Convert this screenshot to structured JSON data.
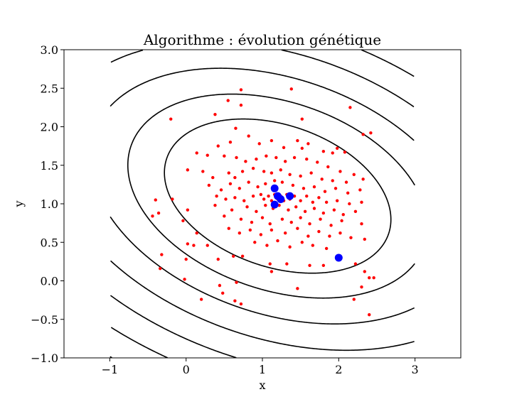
{
  "chart_data": {
    "type": "scatter",
    "title": "Algorithme : évolution génétique",
    "xlabel": "x",
    "ylabel": "y",
    "xlim": [
      -1.6,
      3.6
    ],
    "ylim": [
      -1.0,
      3.0
    ],
    "x_ticks": [
      -1,
      0,
      1,
      2,
      3
    ],
    "x_tick_labels": [
      "−1",
      "0",
      "1",
      "2",
      "3"
    ],
    "y_ticks": [
      -1.0,
      -0.5,
      0.0,
      0.5,
      1.0,
      1.5,
      2.0,
      2.5,
      3.0
    ],
    "y_tick_labels": [
      "−1.0",
      "−0.5",
      "0.0",
      "0.5",
      "1.0",
      "1.5",
      "2.0",
      "2.5",
      "3.0"
    ],
    "grid": false,
    "contours": {
      "center": [
        1.2,
        1.1
      ],
      "quadratic_form": [
        1.0,
        0.9,
        2.2
      ],
      "levels": [
        2.0,
        3.5,
        5.5,
        8.0,
        11,
        14.5,
        18.5,
        23,
        28,
        33.5,
        39.5,
        46,
        53,
        60.5
      ],
      "x_range": [
        -1,
        3
      ],
      "y_range": [
        -1,
        3
      ],
      "color": "#000000"
    },
    "series": [
      {
        "color": "#ff0000",
        "marker": "small-dot",
        "points": [
          [
            0.72,
            2.48
          ],
          [
            0.72,
            2.28
          ],
          [
            0.55,
            2.34
          ],
          [
            1.38,
            2.49
          ],
          [
            1.52,
            2.1
          ],
          [
            2.15,
            2.25
          ],
          [
            2.32,
            1.9
          ],
          [
            2.42,
            1.92
          ],
          [
            0.38,
            2.16
          ],
          [
            -0.2,
            2.1
          ],
          [
            0.65,
            1.98
          ],
          [
            0.82,
            1.88
          ],
          [
            0.58,
            1.8
          ],
          [
            0.42,
            1.75
          ],
          [
            0.96,
            1.78
          ],
          [
            1.12,
            1.82
          ],
          [
            1.46,
            1.82
          ],
          [
            1.6,
            1.78
          ],
          [
            1.8,
            1.68
          ],
          [
            1.98,
            1.72
          ],
          [
            1.92,
            1.66
          ],
          [
            2.08,
            1.67
          ],
          [
            1.52,
            1.72
          ],
          [
            1.28,
            1.73
          ],
          [
            0.14,
            1.66
          ],
          [
            0.28,
            1.63
          ],
          [
            0.5,
            1.62
          ],
          [
            0.66,
            1.6
          ],
          [
            0.78,
            1.55
          ],
          [
            0.92,
            1.58
          ],
          [
            1.05,
            1.62
          ],
          [
            1.18,
            1.6
          ],
          [
            1.3,
            1.55
          ],
          [
            1.42,
            1.6
          ],
          [
            1.58,
            1.58
          ],
          [
            1.72,
            1.54
          ],
          [
            1.86,
            1.48
          ],
          [
            2.02,
            1.42
          ],
          [
            2.2,
            1.38
          ],
          [
            2.32,
            1.32
          ],
          [
            0.02,
            1.44
          ],
          [
            0.22,
            1.42
          ],
          [
            0.35,
            1.34
          ],
          [
            0.56,
            1.4
          ],
          [
            0.64,
            1.34
          ],
          [
            0.74,
            1.42
          ],
          [
            0.88,
            1.46
          ],
          [
            1.02,
            1.42
          ],
          [
            1.12,
            1.4
          ],
          [
            1.24,
            1.44
          ],
          [
            1.36,
            1.38
          ],
          [
            1.5,
            1.36
          ],
          [
            1.64,
            1.4
          ],
          [
            1.78,
            1.32
          ],
          [
            1.92,
            1.3
          ],
          [
            2.1,
            1.28
          ],
          [
            0.3,
            1.24
          ],
          [
            0.46,
            1.18
          ],
          [
            0.58,
            1.26
          ],
          [
            0.7,
            1.2
          ],
          [
            0.82,
            1.28
          ],
          [
            0.94,
            1.22
          ],
          [
            1.04,
            1.26
          ],
          [
            1.16,
            1.3
          ],
          [
            1.26,
            1.28
          ],
          [
            1.4,
            1.24
          ],
          [
            1.54,
            1.2
          ],
          [
            1.68,
            1.22
          ],
          [
            1.82,
            1.16
          ],
          [
            1.96,
            1.2
          ],
          [
            2.12,
            1.14
          ],
          [
            2.28,
            1.18
          ],
          [
            0.4,
            1.1
          ],
          [
            0.52,
            1.06
          ],
          [
            0.64,
            1.08
          ],
          [
            0.76,
            1.04
          ],
          [
            0.88,
            1.1
          ],
          [
            0.98,
            1.12
          ],
          [
            1.02,
            1.06
          ],
          [
            1.08,
            1.1
          ],
          [
            1.12,
            1.04
          ],
          [
            1.16,
            1.12
          ],
          [
            1.2,
            1.06
          ],
          [
            1.24,
            1.1
          ],
          [
            1.28,
            1.04
          ],
          [
            1.32,
            1.12
          ],
          [
            1.36,
            1.06
          ],
          [
            1.42,
            1.1
          ],
          [
            1.5,
            1.04
          ],
          [
            1.58,
            1.1
          ],
          [
            1.66,
            1.02
          ],
          [
            1.74,
            1.08
          ],
          [
            1.84,
            1.02
          ],
          [
            1.98,
            1.04
          ],
          [
            2.14,
            1.0
          ],
          [
            2.3,
            1.02
          ],
          [
            0.38,
            0.98
          ],
          [
            0.6,
            0.92
          ],
          [
            0.8,
            0.96
          ],
          [
            0.92,
            0.9
          ],
          [
            1.04,
            0.98
          ],
          [
            1.14,
            0.94
          ],
          [
            1.22,
            0.98
          ],
          [
            1.34,
            0.92
          ],
          [
            1.44,
            0.96
          ],
          [
            1.56,
            0.9
          ],
          [
            1.68,
            0.94
          ],
          [
            1.8,
            0.88
          ],
          [
            1.94,
            0.92
          ],
          [
            2.06,
            0.86
          ],
          [
            2.22,
            0.9
          ],
          [
            0.5,
            0.84
          ],
          [
            0.72,
            0.8
          ],
          [
            0.86,
            0.76
          ],
          [
            1.0,
            0.82
          ],
          [
            1.1,
            0.74
          ],
          [
            1.26,
            0.8
          ],
          [
            1.38,
            0.76
          ],
          [
            1.5,
            0.82
          ],
          [
            1.62,
            0.74
          ],
          [
            1.76,
            0.8
          ],
          [
            1.9,
            0.72
          ],
          [
            2.04,
            0.78
          ],
          [
            2.3,
            0.74
          ],
          [
            0.56,
            0.68
          ],
          [
            0.7,
            0.62
          ],
          [
            0.84,
            0.66
          ],
          [
            0.98,
            0.6
          ],
          [
            1.12,
            0.66
          ],
          [
            1.3,
            0.62
          ],
          [
            1.46,
            0.68
          ],
          [
            1.6,
            0.58
          ],
          [
            1.74,
            0.64
          ],
          [
            1.88,
            0.58
          ],
          [
            2.02,
            0.62
          ],
          [
            2.16,
            0.56
          ],
          [
            2.34,
            0.54
          ],
          [
            0.9,
            0.5
          ],
          [
            1.06,
            0.46
          ],
          [
            1.2,
            0.52
          ],
          [
            1.36,
            0.44
          ],
          [
            1.52,
            0.5
          ],
          [
            1.66,
            0.46
          ],
          [
            1.84,
            0.42
          ],
          [
            -0.4,
            1.05
          ],
          [
            -0.44,
            0.84
          ],
          [
            -0.36,
            0.88
          ],
          [
            -0.18,
            1.06
          ],
          [
            -0.04,
            0.78
          ],
          [
            0.02,
            0.92
          ],
          [
            0.14,
            0.62
          ],
          [
            0.28,
            0.46
          ],
          [
            0.1,
            0.46
          ],
          [
            -0.32,
            0.34
          ],
          [
            -0.34,
            0.16
          ],
          [
            0.02,
            0.48
          ],
          [
            0.0,
            0.28
          ],
          [
            -0.02,
            0.02
          ],
          [
            0.42,
            0.28
          ],
          [
            0.62,
            0.32
          ],
          [
            0.74,
            0.32
          ],
          [
            0.66,
            -0.02
          ],
          [
            0.44,
            -0.06
          ],
          [
            0.48,
            -0.16
          ],
          [
            0.2,
            -0.24
          ],
          [
            0.64,
            -0.26
          ],
          [
            0.72,
            -0.3
          ],
          [
            1.1,
            0.22
          ],
          [
            1.12,
            0.12
          ],
          [
            1.32,
            0.22
          ],
          [
            1.46,
            -0.1
          ],
          [
            1.62,
            0.2
          ],
          [
            1.8,
            0.2
          ],
          [
            2.22,
            0.22
          ],
          [
            2.34,
            0.12
          ],
          [
            2.4,
            0.04
          ],
          [
            2.46,
            0.04
          ],
          [
            2.3,
            -0.08
          ],
          [
            2.2,
            -0.24
          ],
          [
            2.4,
            -0.44
          ]
        ]
      },
      {
        "color": "#0000ff",
        "marker": "large-dot",
        "points": [
          [
            1.16,
            1.2
          ],
          [
            1.2,
            1.1
          ],
          [
            1.24,
            1.06
          ],
          [
            1.36,
            1.1
          ],
          [
            1.16,
            0.99
          ],
          [
            2.0,
            0.3
          ]
        ]
      }
    ]
  }
}
